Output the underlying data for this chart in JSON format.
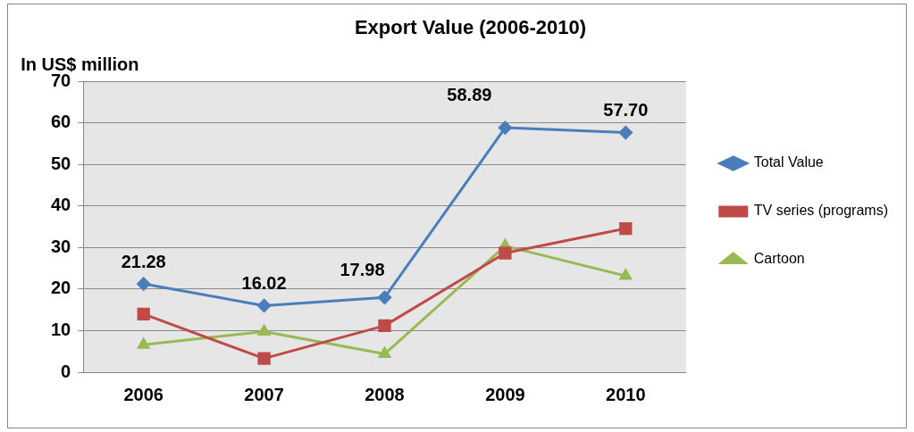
{
  "chart_data": {
    "type": "line",
    "title": "Export Value (2006-2010)",
    "ylabel": "In US$ million",
    "categories": [
      "2006",
      "2007",
      "2008",
      "2009",
      "2010"
    ],
    "series": [
      {
        "name": "Total Value",
        "color": "#4a7ebb",
        "marker": "diamond",
        "values": [
          21.28,
          16.02,
          17.98,
          58.89,
          57.7
        ],
        "value_labels": [
          "21.28",
          "16.02",
          "17.98",
          "58.89",
          "57.70"
        ]
      },
      {
        "name": "TV series (programs)",
        "color": "#be4b48",
        "marker": "square",
        "values": [
          14.0,
          3.3,
          11.2,
          28.7,
          34.6
        ]
      },
      {
        "name": "Cartoon",
        "color": "#98b954",
        "marker": "triangle",
        "values": [
          6.6,
          9.8,
          4.4,
          30.4,
          23.2
        ]
      }
    ],
    "ylim": [
      0,
      70
    ],
    "yticks": [
      0,
      10,
      20,
      30,
      40,
      50,
      60,
      70
    ],
    "grid": "y",
    "legend": "right",
    "line_style": "solid"
  }
}
